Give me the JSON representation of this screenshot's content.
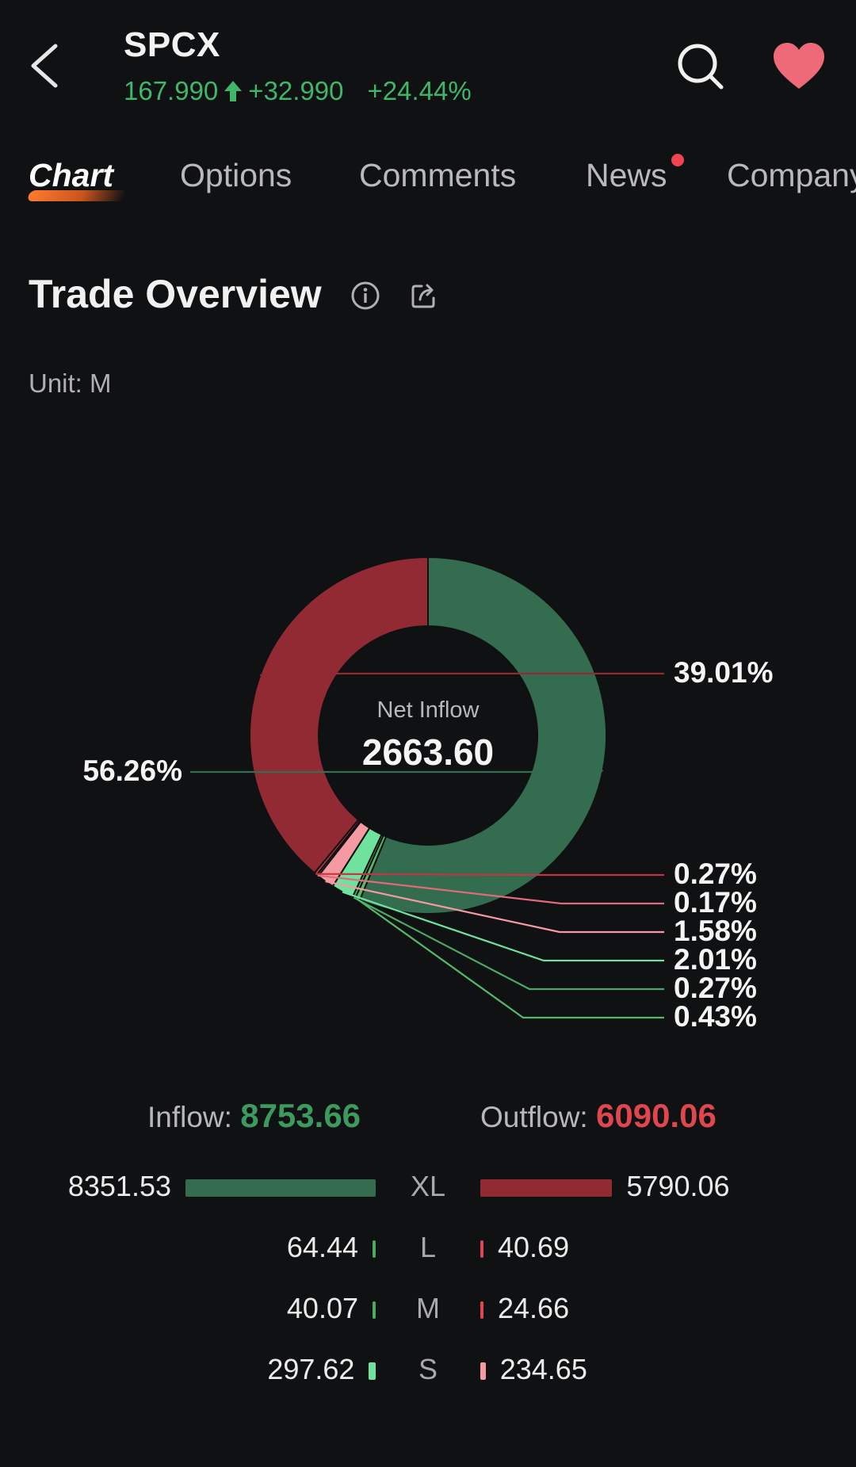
{
  "header": {
    "ticker": "SPCX",
    "price": "167.990",
    "change": "+32.990",
    "change_pct": "+24.44%",
    "quote_color": "#3fb66a"
  },
  "tabs": [
    {
      "label": "Chart",
      "active": true
    },
    {
      "label": "Options",
      "active": false
    },
    {
      "label": "Comments",
      "active": false
    },
    {
      "label": "News",
      "active": false,
      "badge": true
    },
    {
      "label": "Company",
      "active": false
    }
  ],
  "section": {
    "title": "Trade Overview",
    "unit": "Unit: M"
  },
  "chart_data": {
    "type": "pie",
    "title": "",
    "center_label": "Net Inflow",
    "center_value": "2663.60",
    "slices": [
      {
        "label": "56.26%",
        "value": 56.26,
        "color": "#336c4e",
        "group": "Inflow XL"
      },
      {
        "label": "0.43%",
        "value": 0.43,
        "color": "#55b869",
        "group": "Inflow L"
      },
      {
        "label": "0.27%",
        "value": 0.27,
        "color": "#4caa63",
        "group": "Inflow M"
      },
      {
        "label": "2.01%",
        "value": 2.01,
        "color": "#6fe39e",
        "group": "Inflow S"
      },
      {
        "label": "1.58%",
        "value": 1.58,
        "color": "#f59aa3",
        "group": "Outflow S"
      },
      {
        "label": "0.17%",
        "value": 0.17,
        "color": "#e06c79",
        "group": "Outflow M"
      },
      {
        "label": "0.27%",
        "value": 0.27,
        "color": "#c23640",
        "group": "Outflow L"
      },
      {
        "label": "39.01%",
        "value": 39.01,
        "color": "#922a33",
        "group": "Outflow XL"
      }
    ]
  },
  "flows": {
    "inflow_label": "Inflow:",
    "inflow_total": "8753.66",
    "outflow_label": "Outflow:",
    "outflow_total": "6090.06",
    "rows": [
      {
        "cat": "XL",
        "inflow": "8351.53",
        "outflow": "5790.06",
        "in_num": 8351.53,
        "out_num": 5790.06,
        "in_color": "#336c4e",
        "out_color": "#922a33"
      },
      {
        "cat": "L",
        "inflow": "64.44",
        "outflow": "40.69",
        "in_num": 64.44,
        "out_num": 40.69,
        "in_color": "#4caa63",
        "out_color": "#e0464d"
      },
      {
        "cat": "M",
        "inflow": "40.07",
        "outflow": "24.66",
        "in_num": 40.07,
        "out_num": 24.66,
        "in_color": "#4caa63",
        "out_color": "#e0464d"
      },
      {
        "cat": "S",
        "inflow": "297.62",
        "outflow": "234.65",
        "in_num": 297.62,
        "out_num": 234.65,
        "in_color": "#6fe39e",
        "out_color": "#f59aa3"
      }
    ]
  }
}
